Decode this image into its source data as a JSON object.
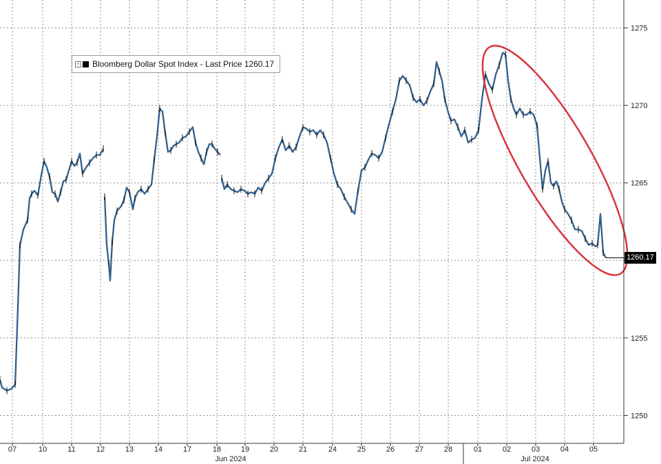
{
  "chart_data": {
    "type": "line",
    "title": "",
    "xlabel": "",
    "ylabel": "",
    "ylim": [
      1248.2,
      1276.8
    ],
    "y_ticks": [
      1250,
      1255,
      1260,
      1265,
      1270,
      1275
    ],
    "legend": {
      "position": "top-left",
      "label": "Bloomberg Dollar Spot Index - Last Price 1260.17"
    },
    "last_price_label": "1260.17",
    "grid": "dotted",
    "x_day_labels": [
      "07",
      "10",
      "11",
      "12",
      "13",
      "14",
      "17",
      "18",
      "19",
      "20",
      "21",
      "24",
      "25",
      "26",
      "27",
      "28",
      "01",
      "02",
      "03",
      "04",
      "05"
    ],
    "month_labels": [
      "Jun 2024",
      "Jul 2024"
    ],
    "series": [
      {
        "color": "#1f6fbf",
        "values": [
          [
            0,
            1252.3
          ],
          [
            3,
            1251.8
          ],
          [
            10,
            1251.6
          ],
          [
            16,
            1251.7
          ],
          [
            22,
            1252.0
          ],
          [
            26,
            1257.0
          ],
          [
            29,
            1261.0
          ],
          [
            34,
            1262.0
          ],
          [
            40,
            1262.6
          ],
          [
            43,
            1264.0
          ],
          [
            46,
            1264.3
          ],
          [
            50,
            1264.5
          ],
          [
            55,
            1264.2
          ],
          [
            60,
            1265.5
          ],
          [
            64,
            1266.4
          ],
          [
            68,
            1266.0
          ],
          [
            72,
            1265.4
          ],
          [
            76,
            1264.4
          ],
          [
            80,
            1264.3
          ],
          [
            84,
            1263.8
          ],
          [
            88,
            1264.4
          ],
          [
            92,
            1265.1
          ],
          [
            96,
            1265.2
          ],
          [
            100,
            1265.8
          ],
          [
            104,
            1266.4
          ],
          [
            108,
            1266.1
          ],
          [
            112,
            1266.3
          ],
          [
            116,
            1266.9
          ],
          [
            120,
            1265.6
          ],
          [
            125,
            1266.0
          ],
          [
            130,
            1266.3
          ],
          [
            135,
            1266.6
          ],
          [
            140,
            1266.8
          ],
          [
            145,
            1266.8
          ],
          [
            150,
            1267.2
          ],
          null,
          [
            152,
            1264.1
          ],
          [
            155,
            1261.0
          ],
          [
            158,
            1259.8
          ],
          [
            160,
            1258.7
          ],
          [
            163,
            1261.2
          ],
          [
            166,
            1262.6
          ],
          [
            170,
            1263.2
          ],
          [
            176,
            1263.5
          ],
          [
            180,
            1263.9
          ],
          [
            184,
            1264.7
          ],
          [
            188,
            1264.4
          ],
          [
            193,
            1263.3
          ],
          [
            196,
            1264.0
          ],
          [
            200,
            1264.4
          ],
          [
            205,
            1264.6
          ],
          [
            210,
            1264.3
          ],
          [
            215,
            1264.6
          ],
          [
            220,
            1264.9
          ],
          [
            224,
            1266.5
          ],
          [
            228,
            1268.0
          ],
          [
            232,
            1269.8
          ],
          [
            236,
            1269.6
          ],
          [
            240,
            1268.2
          ],
          [
            244,
            1267.0
          ],
          [
            248,
            1267.1
          ],
          [
            252,
            1267.4
          ],
          [
            256,
            1267.5
          ],
          [
            260,
            1267.6
          ],
          [
            265,
            1267.9
          ],
          [
            270,
            1268.0
          ],
          [
            275,
            1268.3
          ],
          [
            280,
            1268.6
          ],
          [
            284,
            1267.6
          ],
          [
            288,
            1267.0
          ],
          [
            292,
            1266.6
          ],
          [
            296,
            1266.2
          ],
          [
            300,
            1267.0
          ],
          [
            304,
            1267.5
          ],
          [
            308,
            1267.5
          ],
          [
            312,
            1267.2
          ],
          [
            316,
            1267.0
          ],
          [
            320,
            1266.8
          ],
          null,
          [
            322,
            1265.3
          ],
          [
            326,
            1264.6
          ],
          [
            330,
            1264.9
          ],
          [
            335,
            1264.6
          ],
          [
            340,
            1264.5
          ],
          [
            345,
            1264.4
          ],
          [
            350,
            1264.6
          ],
          [
            355,
            1264.5
          ],
          [
            360,
            1264.3
          ],
          [
            365,
            1264.4
          ],
          [
            370,
            1264.3
          ],
          [
            375,
            1264.7
          ],
          [
            380,
            1264.5
          ],
          [
            385,
            1265.0
          ],
          [
            390,
            1265.3
          ],
          [
            395,
            1265.6
          ],
          [
            400,
            1266.6
          ],
          [
            405,
            1267.3
          ],
          [
            410,
            1267.8
          ],
          [
            415,
            1267.1
          ],
          [
            420,
            1267.4
          ],
          [
            425,
            1267.0
          ],
          [
            430,
            1267.3
          ],
          [
            435,
            1268.0
          ],
          [
            440,
            1268.6
          ],
          [
            445,
            1268.5
          ],
          [
            450,
            1268.3
          ],
          [
            455,
            1268.4
          ],
          [
            460,
            1268.1
          ],
          [
            465,
            1268.4
          ],
          [
            470,
            1268.1
          ],
          [
            475,
            1267.6
          ],
          [
            480,
            1266.6
          ],
          [
            485,
            1265.6
          ],
          [
            490,
            1264.9
          ],
          [
            495,
            1264.6
          ],
          [
            500,
            1264.1
          ],
          [
            505,
            1263.7
          ],
          [
            510,
            1263.3
          ],
          [
            515,
            1263.0
          ],
          [
            520,
            1264.5
          ],
          [
            525,
            1265.8
          ],
          [
            530,
            1266.0
          ],
          [
            535,
            1266.5
          ],
          [
            540,
            1266.9
          ],
          [
            545,
            1266.8
          ],
          [
            550,
            1266.6
          ],
          [
            555,
            1267.0
          ],
          [
            560,
            1267.9
          ],
          [
            565,
            1268.8
          ],
          [
            570,
            1269.6
          ],
          [
            575,
            1270.4
          ],
          [
            580,
            1271.6
          ],
          [
            585,
            1271.9
          ],
          [
            590,
            1271.6
          ],
          [
            595,
            1271.3
          ],
          [
            600,
            1270.5
          ],
          [
            605,
            1270.2
          ],
          [
            610,
            1270.4
          ],
          [
            615,
            1270.0
          ],
          [
            620,
            1270.3
          ],
          [
            625,
            1270.9
          ],
          [
            630,
            1271.4
          ],
          [
            634,
            1272.8
          ],
          [
            638,
            1272.2
          ],
          [
            642,
            1271.6
          ],
          [
            646,
            1270.4
          ],
          [
            650,
            1269.7
          ],
          [
            655,
            1269.0
          ],
          [
            660,
            1269.1
          ],
          [
            665,
            1268.6
          ],
          [
            670,
            1268.0
          ],
          [
            675,
            1268.4
          ],
          [
            680,
            1267.6
          ],
          [
            685,
            1267.8
          ],
          [
            690,
            1267.9
          ],
          [
            695,
            1268.4
          ],
          [
            700,
            1270.4
          ],
          [
            705,
            1272.0
          ],
          [
            710,
            1271.4
          ],
          [
            715,
            1271.0
          ],
          [
            720,
            1272.0
          ],
          [
            725,
            1272.6
          ],
          [
            730,
            1273.4
          ],
          [
            734,
            1273.3
          ],
          [
            738,
            1271.6
          ],
          [
            742,
            1270.4
          ],
          [
            746,
            1269.8
          ],
          [
            750,
            1269.4
          ],
          [
            755,
            1269.8
          ],
          [
            760,
            1269.4
          ],
          [
            765,
            1269.4
          ],
          [
            770,
            1269.6
          ],
          [
            775,
            1269.4
          ],
          [
            780,
            1268.7
          ],
          [
            784,
            1266.6
          ],
          [
            788,
            1264.6
          ],
          [
            792,
            1265.8
          ],
          [
            796,
            1266.4
          ],
          [
            800,
            1265.0
          ],
          [
            804,
            1264.8
          ],
          [
            808,
            1265.1
          ],
          [
            812,
            1264.6
          ],
          [
            816,
            1263.8
          ],
          [
            820,
            1263.3
          ],
          [
            825,
            1263.0
          ],
          [
            830,
            1262.6
          ],
          [
            835,
            1262.0
          ],
          [
            840,
            1262.0
          ],
          [
            845,
            1261.9
          ],
          [
            850,
            1261.4
          ],
          [
            855,
            1261.0
          ],
          [
            860,
            1261.1
          ],
          [
            865,
            1260.9
          ],
          [
            868,
            1261.0
          ],
          [
            872,
            1263.0
          ],
          [
            876,
            1260.5
          ],
          [
            880,
            1260.17
          ]
        ]
      }
    ],
    "annotation": {
      "type": "ellipse",
      "color": "#d9343a"
    }
  }
}
